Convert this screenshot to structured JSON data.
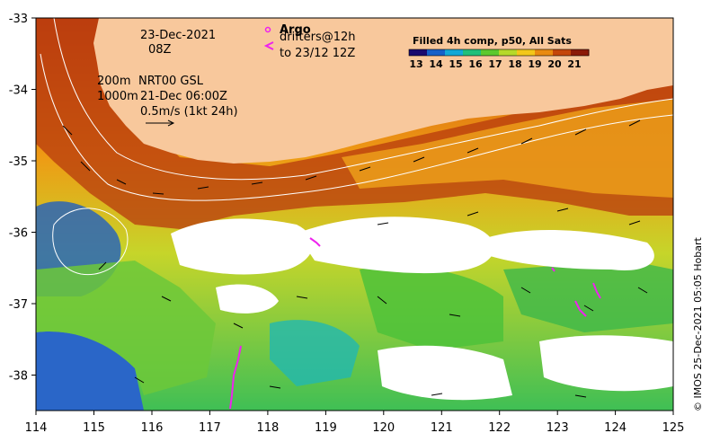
{
  "map": {
    "datetime": {
      "date": "23-Dec-2021",
      "time": "08Z"
    },
    "legend": {
      "argo_label": "Argo",
      "argo_marker": "o",
      "drifter_marker": "<",
      "drifters_line1": "drifters@12h",
      "drifters_line2": "to 23/12 12Z"
    },
    "contours": {
      "depth_200": "200m",
      "depth_1000": "1000m",
      "product": "NRT00 GSL",
      "product_time": "21-Dec 06:00Z"
    },
    "vector_scale": {
      "label": "0.5m/s (1kt 24h)"
    },
    "colorbar": {
      "title": "Filled 4h comp, p50, All Sats",
      "ticks": [
        "13",
        "14",
        "15",
        "16",
        "17",
        "18",
        "19",
        "20",
        "21"
      ],
      "colors": [
        "#1a0a6e",
        "#1560c8",
        "#12a8d6",
        "#1fbf7a",
        "#5cc92e",
        "#b6d92a",
        "#f3c71a",
        "#e98a10",
        "#c4460a",
        "#8b1a08"
      ]
    },
    "x_axis": {
      "ticks": [
        "114",
        "115",
        "116",
        "117",
        "118",
        "119",
        "120",
        "121",
        "122",
        "123",
        "124",
        "125"
      ]
    },
    "y_axis": {
      "ticks": [
        "-33",
        "-34",
        "-35",
        "-36",
        "-37",
        "-38"
      ]
    },
    "credit": "© IMOS 25-Dec-2021 05:05 Hobart",
    "colors": {
      "land": "#f8c89c",
      "cloud_mask": "#ffffff",
      "coast_warm": "#b33a10",
      "drifter_track": "#ee22ee"
    }
  }
}
